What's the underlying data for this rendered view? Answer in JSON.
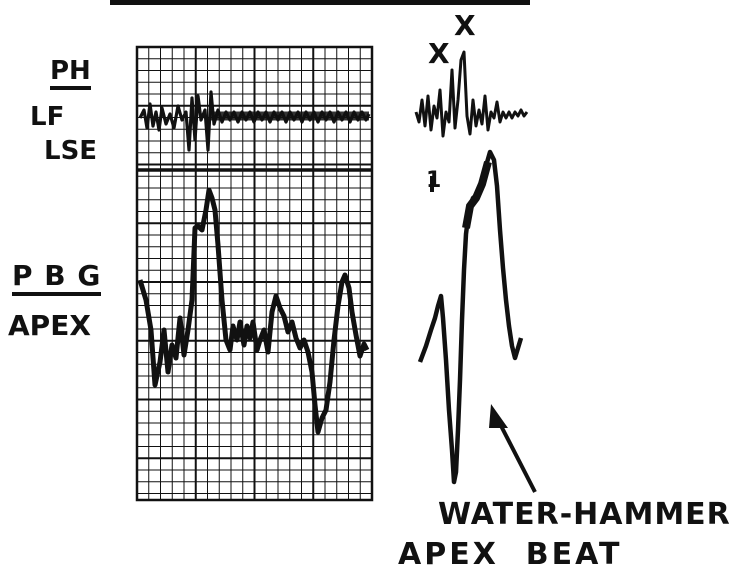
{
  "labels": {
    "ph": "PH",
    "lf": "LF",
    "lse": "LSE",
    "pbg": "P B G",
    "apex": "APEX",
    "x_left": "X",
    "x_right": "X",
    "mark_one": "1",
    "caption_line1": "WATER-HAMMER",
    "caption_line2": "APEX  BEAT"
  },
  "colors": {
    "ink": "#111111",
    "paper": "#ffffff"
  }
}
